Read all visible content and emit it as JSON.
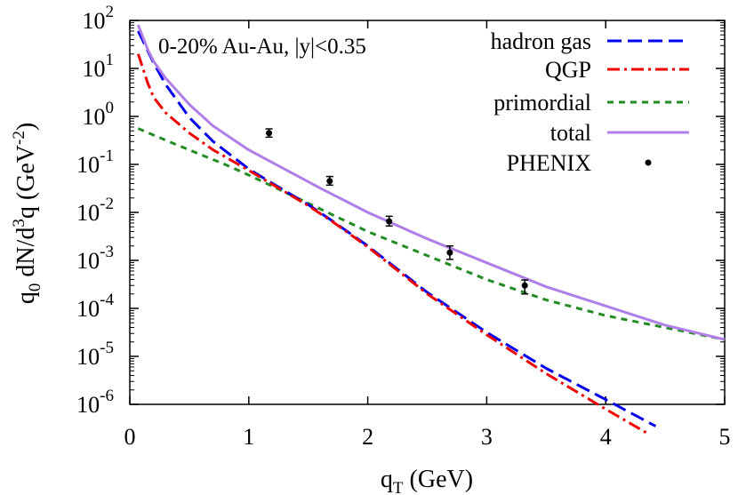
{
  "chart_data": {
    "type": "line",
    "title": "",
    "annotation": "0-20% Au-Au, |y|<0.35",
    "xlabel": {
      "main": "q",
      "sub": "T",
      "rest": " (GeV)"
    },
    "ylabel": {
      "p1": "q",
      "sub": "0",
      "p2": " dN/d",
      "sup1": "3",
      "p3": "q (GeV",
      "sup2": "-2",
      "p4": ")"
    },
    "xlim": [
      0,
      5
    ],
    "ylim": [
      1e-06,
      100
    ],
    "yscale": "log",
    "grid": false,
    "legend_position": "top-right",
    "x_ticks": [
      {
        "value": 0,
        "label": "0"
      },
      {
        "value": 1,
        "label": "1"
      },
      {
        "value": 2,
        "label": "2"
      },
      {
        "value": 3,
        "label": "3"
      },
      {
        "value": 4,
        "label": "4"
      },
      {
        "value": 5,
        "label": "5"
      }
    ],
    "y_ticks": [
      {
        "value": 100,
        "base": "10",
        "exp": "2"
      },
      {
        "value": 10,
        "base": "10",
        "exp": "1"
      },
      {
        "value": 1,
        "base": "10",
        "exp": "0"
      },
      {
        "value": 0.1,
        "base": "10",
        "exp": "-1"
      },
      {
        "value": 0.01,
        "base": "10",
        "exp": "-2"
      },
      {
        "value": 0.001,
        "base": "10",
        "exp": "-3"
      },
      {
        "value": 0.0001,
        "base": "10",
        "exp": "-4"
      },
      {
        "value": 1e-05,
        "base": "10",
        "exp": "-5"
      },
      {
        "value": 1e-06,
        "base": "10",
        "exp": "-6"
      }
    ],
    "series": [
      {
        "name": "hadron gas",
        "style": "long-dash",
        "color": "#0000ee",
        "x": [
          0.07,
          0.2,
          0.3,
          0.5,
          0.7,
          1.0,
          1.2,
          1.5,
          1.7,
          2.0,
          2.5,
          3.0,
          3.5,
          4.0,
          4.42
        ],
        "y": [
          60,
          13,
          4.7,
          0.95,
          0.3,
          0.08,
          0.04,
          0.0145,
          0.0067,
          0.002,
          0.000215,
          3.16e-05,
          5.62e-06,
          1.26e-06,
          3.5e-07
        ]
      },
      {
        "name": "QGP",
        "style": "dash-dot",
        "color": "#ee0000",
        "x": [
          0.07,
          0.15,
          0.2,
          0.3,
          0.5,
          0.7,
          1.0,
          1.2,
          1.5,
          1.7,
          2.0,
          2.5,
          3.0,
          3.5,
          4.0,
          4.35
        ],
        "y": [
          20,
          5,
          2.5,
          1.2,
          0.45,
          0.2,
          0.075,
          0.038,
          0.0138,
          0.0065,
          0.0019,
          0.0002,
          2.82e-05,
          4.37e-06,
          7.94e-07,
          2.5e-07
        ]
      },
      {
        "name": "primordial",
        "style": "short-dash",
        "color": "#228b22",
        "x": [
          0.07,
          0.3,
          0.5,
          0.8,
          1.0,
          1.5,
          2.0,
          2.5,
          3.0,
          3.5,
          4.0,
          4.5,
          5.0
        ],
        "y": [
          0.56,
          0.32,
          0.2,
          0.1,
          0.06,
          0.0155,
          0.00398,
          0.00126,
          0.000398,
          0.00015,
          7.08e-05,
          3.98e-05,
          2.24e-05
        ]
      },
      {
        "name": "total",
        "style": "solid",
        "color": "#b07ee8",
        "x": [
          0.07,
          0.15,
          0.2,
          0.3,
          0.5,
          0.7,
          1.0,
          1.3,
          1.6,
          2.0,
          2.5,
          3.0,
          3.5,
          4.0,
          4.5,
          5.0
        ],
        "y": [
          80,
          25,
          14,
          6.3,
          1.78,
          0.63,
          0.2,
          0.08,
          0.032,
          0.01,
          0.00282,
          0.00089,
          0.000282,
          0.000112,
          4.47e-05,
          2.24e-05
        ]
      }
    ],
    "data_points": {
      "name": "PHENIX",
      "color": "#000000",
      "points": [
        {
          "x": 1.17,
          "y": 0.45,
          "err_low": 0.37,
          "err_high": 0.55
        },
        {
          "x": 1.68,
          "y": 0.045,
          "err_low": 0.037,
          "err_high": 0.056
        },
        {
          "x": 2.18,
          "y": 0.0065,
          "err_low": 0.0052,
          "err_high": 0.0083
        },
        {
          "x": 2.69,
          "y": 0.00145,
          "err_low": 0.00105,
          "err_high": 0.002
        },
        {
          "x": 3.32,
          "y": 0.0003,
          "err_low": 0.0002,
          "err_high": 0.00039
        }
      ]
    }
  }
}
